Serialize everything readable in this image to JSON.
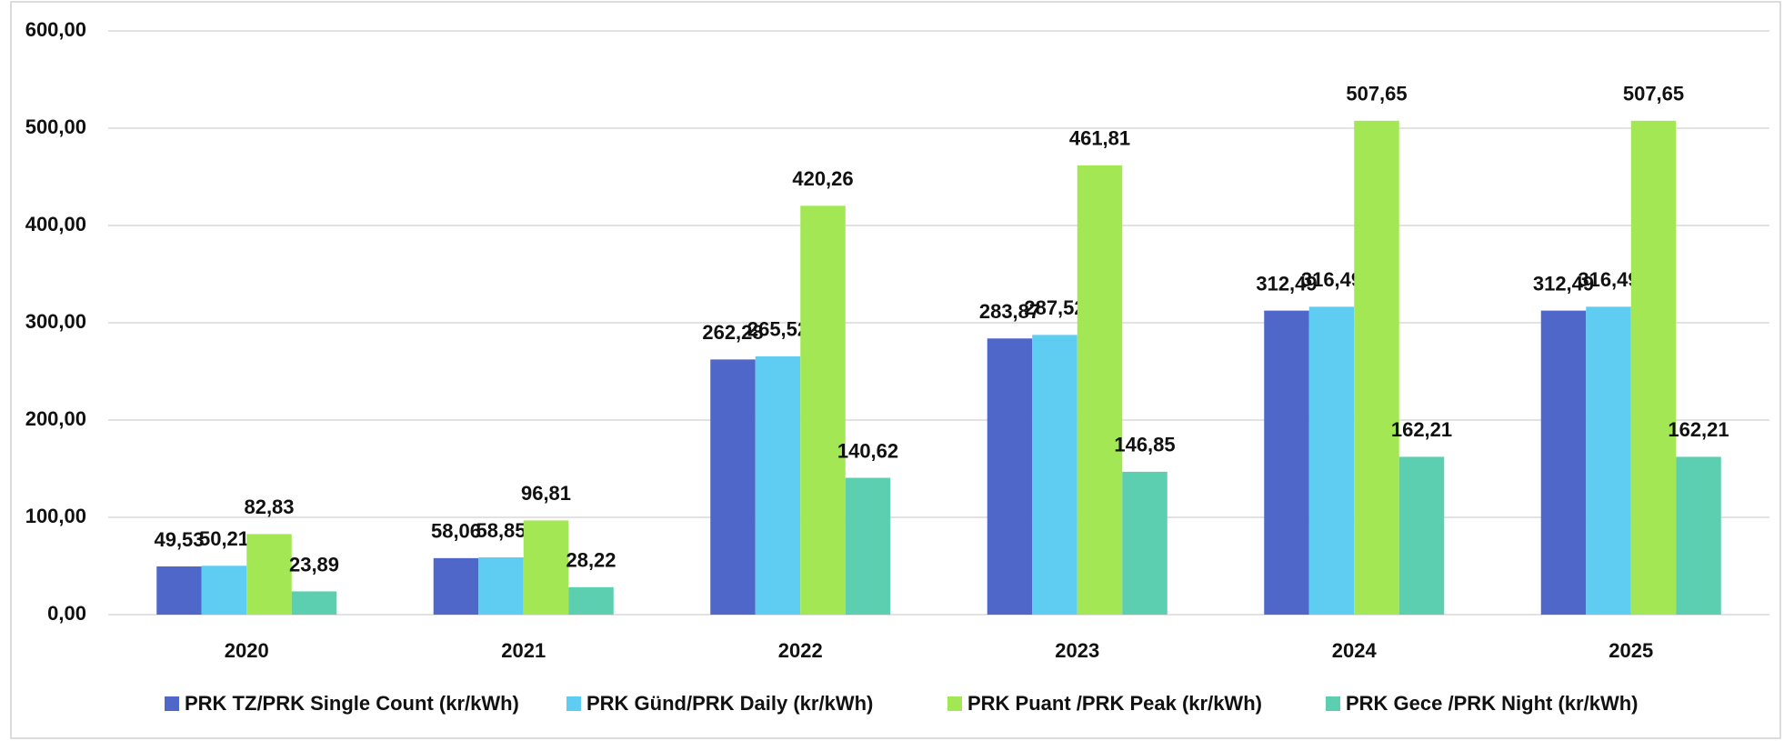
{
  "chart_data": {
    "type": "bar",
    "categories": [
      "2020",
      "2021",
      "2022",
      "2023",
      "2024",
      "2025"
    ],
    "series": [
      {
        "name": "PRK TZ/PRK Single Count (kr/kWh)",
        "color": "#4f67c9",
        "values": [
          49.53,
          58.06,
          262.28,
          283.87,
          312.49,
          312.49
        ],
        "value_labels": [
          "49,53",
          "58,06",
          "262,28",
          "283,87",
          "312,49",
          "312,49"
        ]
      },
      {
        "name": "PRK Günd/PRK Daily (kr/kWh)",
        "color": "#5fcdf2",
        "values": [
          50.21,
          58.85,
          265.52,
          287.52,
          316.49,
          316.49
        ],
        "value_labels": [
          "50,21",
          "58,85",
          "265,52",
          "287,52",
          "316,49",
          "316,49"
        ]
      },
      {
        "name": "PRK Puant /PRK Peak (kr/kWh)",
        "color": "#a3e854",
        "values": [
          82.83,
          96.81,
          420.26,
          461.81,
          507.65,
          507.65
        ],
        "value_labels": [
          "82,83",
          "96,81",
          "420,26",
          "461,81",
          "507,65",
          "507,65"
        ]
      },
      {
        "name": "PRK Gece /PRK Night (kr/kWh)",
        "color": "#5ccfb0",
        "values": [
          23.89,
          28.22,
          140.62,
          146.85,
          162.21,
          162.21
        ],
        "value_labels": [
          "23,89",
          "28,22",
          "140,62",
          "146,85",
          "162,21",
          "162,21"
        ]
      }
    ],
    "ylim": [
      0,
      600
    ],
    "yticks": [
      {
        "value": 0,
        "label": "0,00"
      },
      {
        "value": 100,
        "label": "100,00"
      },
      {
        "value": 200,
        "label": "200,00"
      },
      {
        "value": 300,
        "label": "300,00"
      },
      {
        "value": 400,
        "label": "400,00"
      },
      {
        "value": 500,
        "label": "500,00"
      },
      {
        "value": 600,
        "label": "600,00"
      }
    ],
    "grid": true,
    "legend": "bottom"
  }
}
